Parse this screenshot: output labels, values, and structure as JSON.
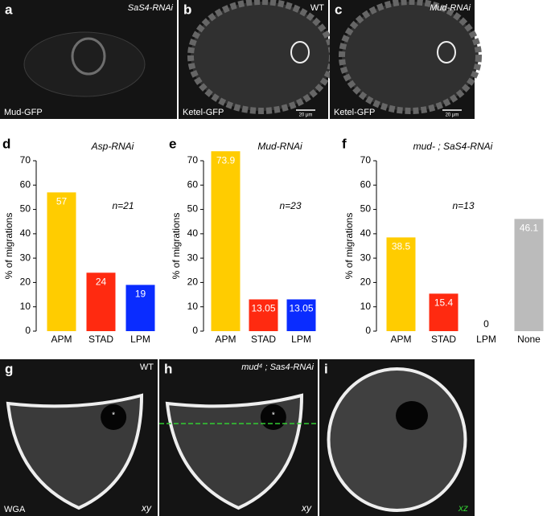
{
  "panels": [
    {
      "letter": "a",
      "top_right": "SaS4-RNAi",
      "bottom_left": "Mud-GFP"
    },
    {
      "letter": "b",
      "top_right": "WT",
      "bottom_left": "Ketel-GFP",
      "scale": "20 μm"
    },
    {
      "letter": "c",
      "top_right": "Mud-RNAi",
      "bottom_left": "Ketel-GFP",
      "scale": "20 μm"
    },
    {
      "letter": "g",
      "top_right": "WT",
      "bottom_left": "WGA",
      "bottom_right": "xy"
    },
    {
      "letter": "h",
      "top_right": "mud⁴ ; Sas4-RNAi",
      "bottom_right": "xy"
    },
    {
      "letter": "i",
      "bottom_right": "xz"
    }
  ],
  "chart_data": [
    {
      "type": "bar",
      "panel": "d",
      "title": "Asp-RNAi",
      "ylabel": "% of migrations",
      "annotation": "n=21",
      "categories": [
        "APM",
        "STAD",
        "LPM"
      ],
      "values": [
        57,
        24,
        19
      ],
      "colors": [
        "#ffcc00",
        "#ff2a10",
        "#0a2cff"
      ],
      "ylim": [
        0,
        70
      ],
      "yticks": [
        0,
        10,
        20,
        30,
        40,
        50,
        60,
        70
      ]
    },
    {
      "type": "bar",
      "panel": "e",
      "title": "Mud-RNAi",
      "ylabel": "% of migrations",
      "annotation": "n=23",
      "categories": [
        "APM",
        "STAD",
        "LPM"
      ],
      "values": [
        73.9,
        13.05,
        13.05
      ],
      "colors": [
        "#ffcc00",
        "#ff2a10",
        "#0a2cff"
      ],
      "ylim": [
        0,
        70
      ],
      "yticks": [
        0,
        10,
        20,
        30,
        40,
        50,
        60,
        70
      ]
    },
    {
      "type": "bar",
      "panel": "f",
      "title": "mud- ; SaS4-RNAi",
      "ylabel": "% of migrations",
      "annotation": "n=13",
      "categories": [
        "APM",
        "STAD",
        "LPM",
        "None"
      ],
      "values": [
        38.5,
        15.4,
        0,
        46.1
      ],
      "colors": [
        "#ffcc00",
        "#ff2a10",
        "#0a2cff",
        "#bbbbbb"
      ],
      "ylim": [
        0,
        70
      ],
      "yticks": [
        0,
        10,
        20,
        30,
        40,
        50,
        60,
        70
      ]
    }
  ]
}
